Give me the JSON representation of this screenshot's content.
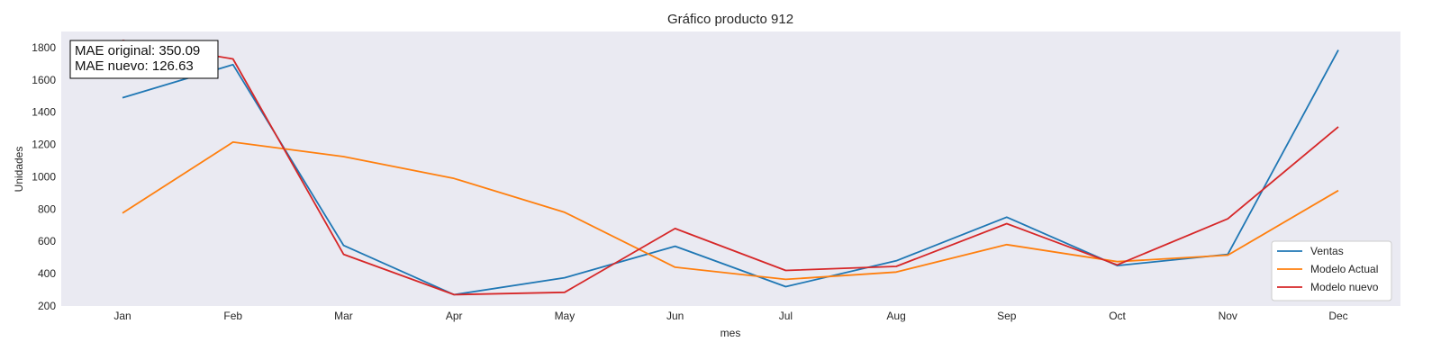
{
  "chart_data": {
    "type": "line",
    "title": "Gráfico producto 912",
    "xlabel": "mes",
    "ylabel": "Unidades",
    "categories": [
      "Jan",
      "Feb",
      "Mar",
      "Apr",
      "May",
      "Jun",
      "Jul",
      "Aug",
      "Sep",
      "Oct",
      "Nov",
      "Dec"
    ],
    "ylim": [
      200,
      1900
    ],
    "yticks": [
      200,
      400,
      600,
      800,
      1000,
      1200,
      1400,
      1600,
      1800
    ],
    "grid": false,
    "background_color": "#eaeaf2",
    "legend_position": "lower-right",
    "series": [
      {
        "name": "Ventas",
        "color": "#1f77b4",
        "values": [
          1490,
          1695,
          575,
          270,
          375,
          570,
          320,
          480,
          750,
          450,
          520,
          1785
        ]
      },
      {
        "name": "Modelo Actual",
        "color": "#ff7f0e",
        "values": [
          775,
          1215,
          1125,
          990,
          780,
          440,
          365,
          410,
          580,
          475,
          515,
          915
        ]
      },
      {
        "name": "Modelo nuevo",
        "color": "#d62728",
        "values": [
          1845,
          1730,
          520,
          270,
          285,
          680,
          420,
          445,
          710,
          455,
          740,
          1310
        ]
      }
    ],
    "annotation": {
      "lines": [
        "MAE original: 350.09",
        "MAE nuevo: 126.63"
      ]
    }
  }
}
